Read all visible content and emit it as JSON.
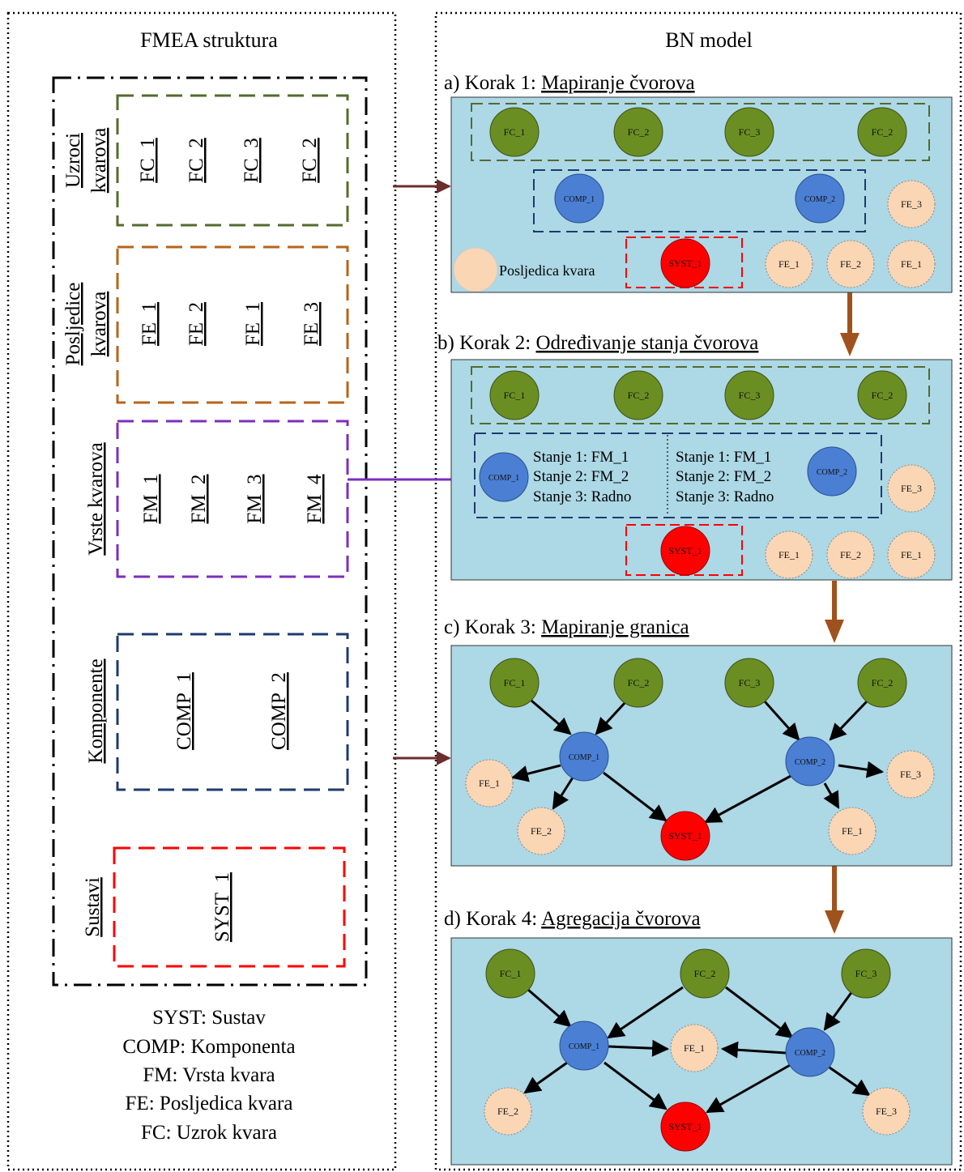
{
  "left_panel": {
    "title": "FMEA struktura",
    "groups": {
      "causes": {
        "label_line1": "Uzroci",
        "label_line2": "kvarova",
        "items": [
          "FC_1",
          "FC_2",
          "FC_3",
          "FC_2"
        ]
      },
      "effects": {
        "label_line1": "Posljedice",
        "label_line2": "kvarova",
        "items": [
          "FE_1",
          "FE_2",
          "FE_1",
          "FE_3"
        ]
      },
      "modes": {
        "label": "Vrste kvarova",
        "items": [
          "FM_1",
          "FM_2",
          "FM_3",
          "FM_4"
        ]
      },
      "components": {
        "label": "Komponente",
        "items": [
          "COMP_1",
          "COMP_2"
        ]
      },
      "systems": {
        "label": "Sustavi",
        "items": [
          "SYST_1"
        ]
      }
    },
    "legend": [
      "SYST: Sustav",
      "COMP: Komponenta",
      "FM: Vrsta kvara",
      "FE: Posljedica kvara",
      "FC: Uzrok kvara"
    ]
  },
  "right_panel": {
    "title": "BN model",
    "steps": [
      {
        "prefix": "a) Korak 1: ",
        "name": "Mapiranje čvorova"
      },
      {
        "prefix": "b) Korak 2: ",
        "name": "Određivanje stanja čvorova"
      },
      {
        "prefix": "c) Korak 3: ",
        "name": "Mapiranje granica"
      },
      {
        "prefix": "d) Korak 4: ",
        "name": "Agregacija čvorova"
      }
    ],
    "legend_effect": "Posljedica kvara",
    "states_left": [
      "Stanje 1: FM_1",
      "Stanje 2: FM_2",
      "Stanje 3: Radno"
    ],
    "states_right": [
      "Stanje 1: FM_1",
      "Stanje 2: FM_2",
      "Stanje 3: Radno"
    ],
    "node_labels": {
      "fc1": "FC_1",
      "fc2": "FC_2",
      "fc3": "FC_3",
      "fe1": "FE_1",
      "fe2": "FE_2",
      "fe3": "FE_3",
      "comp1": "COMP_1",
      "comp2": "COMP_2",
      "syst1": "SYST_1"
    }
  },
  "colors": {
    "panel_bg": "#add8e6",
    "fc_node": "#6b8e23",
    "comp_node": "#4a7fd4",
    "syst_node": "#ff0000",
    "fe_node": "#fad6b4",
    "causes_border": "#556b2f",
    "effects_border": "#b5651d",
    "modes_border": "#7b2fbe",
    "components_border": "#1f3a6e",
    "systems_border": "#ff0000",
    "step_arrow": "#a0521e",
    "map_arrow": "#6b2d2d",
    "mode_arrow": "#7b2fbe"
  }
}
